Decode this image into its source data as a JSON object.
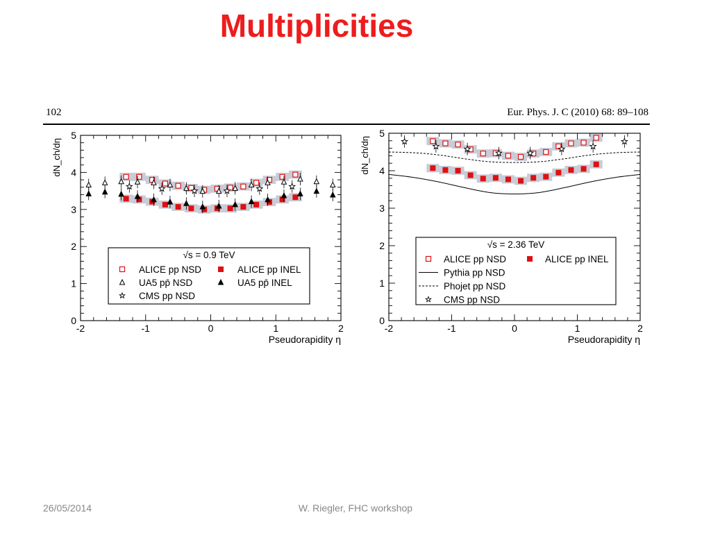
{
  "slide": {
    "title": "Multiplicities",
    "footer_date": "26/05/2014",
    "footer_author": "W. Riegler, FHC workshop"
  },
  "paper_header": {
    "page": "102",
    "journal": "Eur. Phys. J. C (2010) 68: 89–108"
  },
  "colors": {
    "title": "#ee1c1c",
    "alice": "#dd1111",
    "band": "#c9ccd6",
    "axis": "#000000"
  },
  "chart_data": [
    {
      "type": "scatter",
      "xlabel": "Pseudorapidity η",
      "ylabel": "dN_ch/dη",
      "xlim": [
        -2.0,
        2.0
      ],
      "ylim": [
        0,
        5.0
      ],
      "x_ticks": [
        -2,
        -1,
        0,
        1,
        2
      ],
      "y_ticks": [
        0,
        1,
        2,
        3,
        4,
        5
      ],
      "grid": false,
      "legend_position": "bottom-right",
      "legend_title": "√s = 0.9 TeV",
      "series": [
        {
          "name": "ALICE pp NSD",
          "marker": "open-square",
          "color": "#dd1111",
          "band": true,
          "x": [
            -1.3,
            -1.1,
            -0.9,
            -0.7,
            -0.5,
            -0.3,
            -0.1,
            0.1,
            0.3,
            0.5,
            0.7,
            0.9,
            1.1,
            1.3
          ],
          "y": [
            3.88,
            3.88,
            3.8,
            3.7,
            3.64,
            3.58,
            3.53,
            3.56,
            3.59,
            3.62,
            3.72,
            3.8,
            3.88,
            3.94
          ]
        },
        {
          "name": "ALICE pp INEL",
          "marker": "filled-square",
          "color": "#dd1111",
          "band": true,
          "x": [
            -1.3,
            -1.1,
            -0.9,
            -0.7,
            -0.5,
            -0.3,
            -0.1,
            0.1,
            0.3,
            0.5,
            0.7,
            0.9,
            1.1,
            1.3
          ],
          "y": [
            3.29,
            3.27,
            3.21,
            3.13,
            3.07,
            3.03,
            3.0,
            3.03,
            3.03,
            3.07,
            3.13,
            3.2,
            3.27,
            3.33
          ]
        },
        {
          "name": "UA5 pp̄ NSD",
          "marker": "open-triangle",
          "color": "#000000",
          "band": false,
          "x": [
            -1.875,
            -1.625,
            -1.375,
            -1.125,
            -0.875,
            -0.625,
            -0.375,
            -0.125,
            0.125,
            0.375,
            0.625,
            0.875,
            1.125,
            1.375,
            1.625,
            1.875
          ],
          "y": [
            3.66,
            3.72,
            3.75,
            3.74,
            3.72,
            3.66,
            3.57,
            3.49,
            3.49,
            3.57,
            3.66,
            3.72,
            3.74,
            3.82,
            3.75,
            3.66
          ]
        },
        {
          "name": "UA5 pp̄ INEL",
          "marker": "filled-triangle",
          "color": "#000000",
          "band": false,
          "x": [
            -1.875,
            -1.625,
            -1.375,
            -1.125,
            -0.875,
            -0.625,
            -0.375,
            -0.125,
            0.125,
            0.375,
            0.625,
            0.875,
            1.125,
            1.375,
            1.625,
            1.875
          ],
          "y": [
            3.42,
            3.47,
            3.41,
            3.35,
            3.26,
            3.2,
            3.16,
            3.07,
            3.09,
            3.13,
            3.21,
            3.26,
            3.37,
            3.42,
            3.49,
            3.39
          ]
        },
        {
          "name": "CMS pp NSD",
          "marker": "star",
          "color": "#000000",
          "band": false,
          "x": [
            -1.25,
            -0.75,
            -0.25,
            0.25,
            0.75,
            1.25
          ],
          "y": [
            3.62,
            3.56,
            3.5,
            3.5,
            3.56,
            3.62
          ]
        }
      ]
    },
    {
      "type": "scatter",
      "xlabel": "Pseudorapidity η",
      "ylabel": "dN_ch/dη",
      "xlim": [
        -2.0,
        2.0
      ],
      "ylim": [
        0,
        5.0
      ],
      "x_ticks": [
        -2,
        -1,
        0,
        1,
        2
      ],
      "y_ticks": [
        0,
        1,
        2,
        3,
        4,
        5
      ],
      "grid": false,
      "legend_position": "bottom-right",
      "legend_title": "√s = 2.36 TeV",
      "series": [
        {
          "name": "ALICE pp NSD",
          "marker": "open-square",
          "color": "#dd1111",
          "band": true,
          "x": [
            -1.3,
            -1.1,
            -0.9,
            -0.7,
            -0.5,
            -0.3,
            -0.1,
            0.1,
            0.3,
            0.5,
            0.7,
            0.9,
            1.1,
            1.3
          ],
          "y": [
            4.79,
            4.73,
            4.7,
            4.57,
            4.46,
            4.47,
            4.4,
            4.37,
            4.46,
            4.5,
            4.65,
            4.73,
            4.75,
            4.88
          ]
        },
        {
          "name": "ALICE pp INEL",
          "marker": "filled-square",
          "color": "#dd1111",
          "band": true,
          "x": [
            -1.3,
            -1.1,
            -0.9,
            -0.7,
            -0.5,
            -0.3,
            -0.1,
            0.1,
            0.3,
            0.5,
            0.7,
            0.9,
            1.1,
            1.3
          ],
          "y": [
            4.07,
            4.02,
            4.0,
            3.88,
            3.79,
            3.81,
            3.77,
            3.73,
            3.81,
            3.84,
            3.95,
            4.02,
            4.05,
            4.17
          ]
        },
        {
          "name": "Pythia pp NSD",
          "marker": "solid-line",
          "color": "#000000",
          "band": false,
          "x": [
            -2.0,
            -1.6,
            -1.2,
            -0.8,
            -0.4,
            0.0,
            0.4,
            0.8,
            1.2,
            1.6,
            2.0
          ],
          "y": [
            3.9,
            3.82,
            3.7,
            3.55,
            3.42,
            3.38,
            3.42,
            3.55,
            3.7,
            3.82,
            3.9
          ]
        },
        {
          "name": "Phojet pp NSD",
          "marker": "dashed-line",
          "color": "#000000",
          "band": false,
          "x": [
            -2.0,
            -1.6,
            -1.2,
            -0.8,
            -0.4,
            0.0,
            0.4,
            0.8,
            1.2,
            1.6,
            2.0
          ],
          "y": [
            4.5,
            4.48,
            4.42,
            4.32,
            4.24,
            4.22,
            4.24,
            4.32,
            4.42,
            4.48,
            4.5
          ]
        },
        {
          "name": "CMS pp NSD",
          "marker": "star",
          "color": "#000000",
          "band": false,
          "x": [
            -1.75,
            -1.25,
            -0.75,
            -0.25,
            0.25,
            0.75,
            1.25,
            1.75
          ],
          "y": [
            4.78,
            4.65,
            4.58,
            4.47,
            4.47,
            4.58,
            4.65,
            4.78
          ]
        }
      ]
    }
  ]
}
